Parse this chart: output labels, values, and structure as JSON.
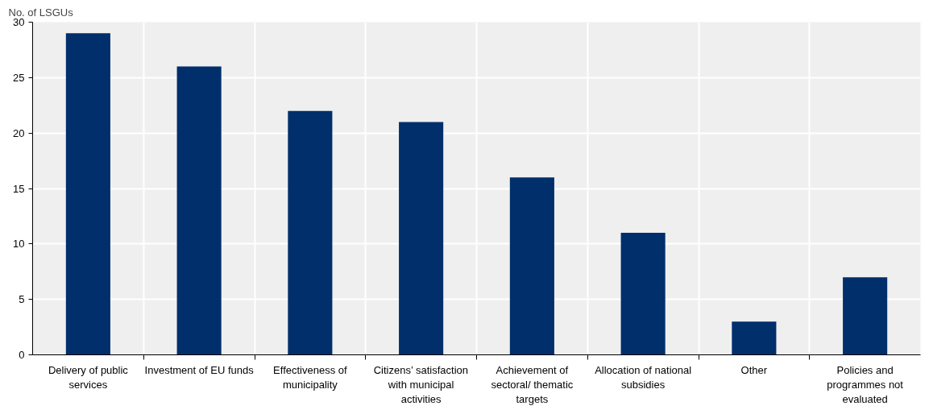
{
  "chart_data": {
    "type": "bar",
    "ylabel": "No. of LSGUs",
    "categories": [
      "Delivery of public services",
      "Investment of EU funds",
      "Effectiveness of municipality",
      "Citizens’ satisfaction with municipal activities",
      "Achievement of sectoral/ thematic targets",
      "Allocation of national subsidies",
      "Other",
      "Policies and programmes not evaluated"
    ],
    "values": [
      29,
      26,
      22,
      21,
      16,
      11,
      3,
      7
    ],
    "color": "#002f6c",
    "ylim": [
      0,
      30
    ],
    "yticks": [
      0,
      5,
      10,
      15,
      20,
      25,
      30
    ],
    "grid": true
  }
}
